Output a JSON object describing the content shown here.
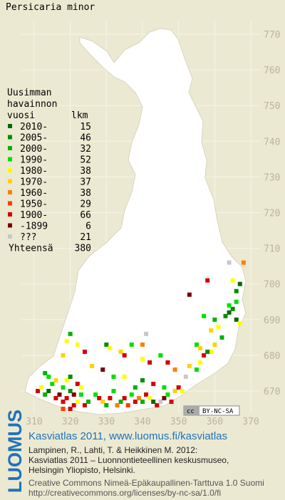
{
  "title": "Persicaria minor",
  "axes": {
    "xticks": [
      310,
      320,
      330,
      340,
      350,
      360,
      370
    ],
    "yticks": [
      680,
      690,
      700,
      710,
      720,
      730,
      740,
      750,
      760,
      770,
      670
    ],
    "xlim": [
      310,
      370
    ],
    "ylim": [
      670,
      770
    ]
  },
  "legend": {
    "heading": [
      "Uusimman",
      "havainnon",
      "vuosi"
    ],
    "count_heading": "lkm",
    "classes": [
      {
        "label": "2010-",
        "count": 15,
        "color": "#006a00"
      },
      {
        "label": "2005-",
        "count": 46,
        "color": "#008e00"
      },
      {
        "label": "2000-",
        "count": 32,
        "color": "#00b400"
      },
      {
        "label": "1990-",
        "count": 52,
        "color": "#00e000"
      },
      {
        "label": "1980-",
        "count": 38,
        "color": "#ffff00"
      },
      {
        "label": "1970-",
        "count": 37,
        "color": "#ffd200"
      },
      {
        "label": "1960-",
        "count": 38,
        "color": "#ff7f00"
      },
      {
        "label": "1950-",
        "count": 29,
        "color": "#ff3c00"
      },
      {
        "label": "1900-",
        "count": 66,
        "color": "#d40000"
      },
      {
        "label": "-1899",
        "count": 6,
        "color": "#7a0000"
      },
      {
        "label": "???",
        "count": 21,
        "color": "#c8c8c8"
      }
    ],
    "total_label": "Yhteensä",
    "total": 380
  },
  "records": [
    [
      311,
      670,
      8
    ],
    [
      312,
      671,
      4
    ],
    [
      313,
      669,
      2
    ],
    [
      314,
      670,
      0
    ],
    [
      315,
      672,
      3
    ],
    [
      316,
      668,
      8
    ],
    [
      317,
      669,
      9
    ],
    [
      318,
      667,
      8
    ],
    [
      319,
      668,
      8
    ],
    [
      320,
      670,
      1
    ],
    [
      321,
      666,
      8
    ],
    [
      322,
      667,
      4
    ],
    [
      323,
      669,
      3
    ],
    [
      324,
      666,
      8
    ],
    [
      325,
      667,
      2
    ],
    [
      318,
      671,
      3
    ],
    [
      319,
      673,
      4
    ],
    [
      320,
      674,
      1
    ],
    [
      322,
      672,
      8
    ],
    [
      316,
      673,
      5
    ],
    [
      314,
      674,
      3
    ],
    [
      313,
      675,
      2
    ],
    [
      320,
      665,
      8
    ],
    [
      318,
      665,
      7
    ],
    [
      321,
      669,
      9
    ],
    [
      323,
      671,
      4
    ],
    [
      327,
      669,
      3
    ],
    [
      328,
      668,
      8
    ],
    [
      329,
      667,
      5
    ],
    [
      330,
      666,
      2
    ],
    [
      331,
      668,
      8
    ],
    [
      332,
      670,
      3
    ],
    [
      333,
      666,
      6
    ],
    [
      334,
      667,
      2
    ],
    [
      335,
      668,
      8
    ],
    [
      336,
      666,
      7
    ],
    [
      337,
      669,
      3
    ],
    [
      338,
      667,
      8
    ],
    [
      339,
      668,
      6
    ],
    [
      340,
      667,
      2
    ],
    [
      341,
      669,
      8
    ],
    [
      342,
      668,
      4
    ],
    [
      343,
      667,
      0
    ],
    [
      344,
      666,
      8
    ],
    [
      345,
      667,
      10
    ],
    [
      346,
      668,
      9
    ],
    [
      347,
      669,
      3
    ],
    [
      348,
      667,
      8
    ],
    [
      349,
      670,
      5
    ],
    [
      350,
      671,
      8
    ],
    [
      351,
      670,
      4
    ],
    [
      346,
      671,
      3
    ],
    [
      343,
      672,
      8
    ],
    [
      340,
      673,
      1
    ],
    [
      338,
      671,
      2
    ],
    [
      335,
      674,
      4
    ],
    [
      332,
      674,
      3
    ],
    [
      329,
      676,
      9
    ],
    [
      326,
      677,
      5
    ],
    [
      330,
      683,
      1
    ],
    [
      331,
      682,
      4
    ],
    [
      322,
      683,
      4
    ],
    [
      324,
      681,
      8
    ],
    [
      318,
      680,
      5
    ],
    [
      319,
      684,
      4
    ],
    [
      320,
      686,
      2
    ],
    [
      334,
      681,
      5
    ],
    [
      335,
      680,
      8
    ],
    [
      337,
      683,
      3
    ],
    [
      340,
      679,
      4
    ],
    [
      342,
      678,
      8
    ],
    [
      340,
      683,
      6
    ],
    [
      341,
      686,
      10
    ],
    [
      345,
      680,
      3
    ],
    [
      347,
      678,
      8
    ],
    [
      349,
      676,
      6
    ],
    [
      352,
      674,
      10
    ],
    [
      353,
      677,
      5
    ],
    [
      355,
      676,
      3
    ],
    [
      356,
      678,
      4
    ],
    [
      357,
      680,
      8
    ],
    [
      359,
      681,
      4
    ],
    [
      360,
      683,
      5
    ],
    [
      359,
      687,
      5
    ],
    [
      360,
      690,
      2
    ],
    [
      361,
      688,
      4
    ],
    [
      362,
      685,
      2
    ],
    [
      363,
      691,
      1
    ],
    [
      364,
      692,
      0
    ],
    [
      365,
      693,
      1
    ],
    [
      364,
      694,
      3
    ],
    [
      366,
      690,
      0
    ],
    [
      366,
      695,
      3
    ],
    [
      367,
      689,
      4
    ],
    [
      366,
      698,
      1
    ],
    [
      367,
      700,
      0
    ],
    [
      365,
      701,
      4
    ],
    [
      358,
      701,
      8
    ],
    [
      353,
      697,
      9
    ],
    [
      364,
      706,
      10
    ],
    [
      368,
      706,
      6
    ],
    [
      357,
      691,
      3
    ],
    [
      358,
      681,
      1
    ],
    [
      355,
      683,
      3
    ],
    [
      356,
      682,
      5
    ]
  ],
  "license_badge": {
    "cc": "cc",
    "terms": "BY-NC-SA"
  },
  "footer": {
    "brand": "LUOMUS",
    "headline": "Kasviatlas 2011, www.luomus.fi/kasviatlas",
    "citation": [
      "Lampinen, R., Lahti, T. & Heikkinen M. 2012:",
      "Kasviatlas 2011 – Luonnontieteellinen keskusmuseo,",
      "Helsingin Yliopisto, Helsinki."
    ],
    "license": [
      "Creative Commons Nimeä-Epäkaupallinen-Tarttuva 1.0 Suomi",
      "http://creativecommons.org/licenses/by-nc-sa/1.0/fi"
    ]
  }
}
